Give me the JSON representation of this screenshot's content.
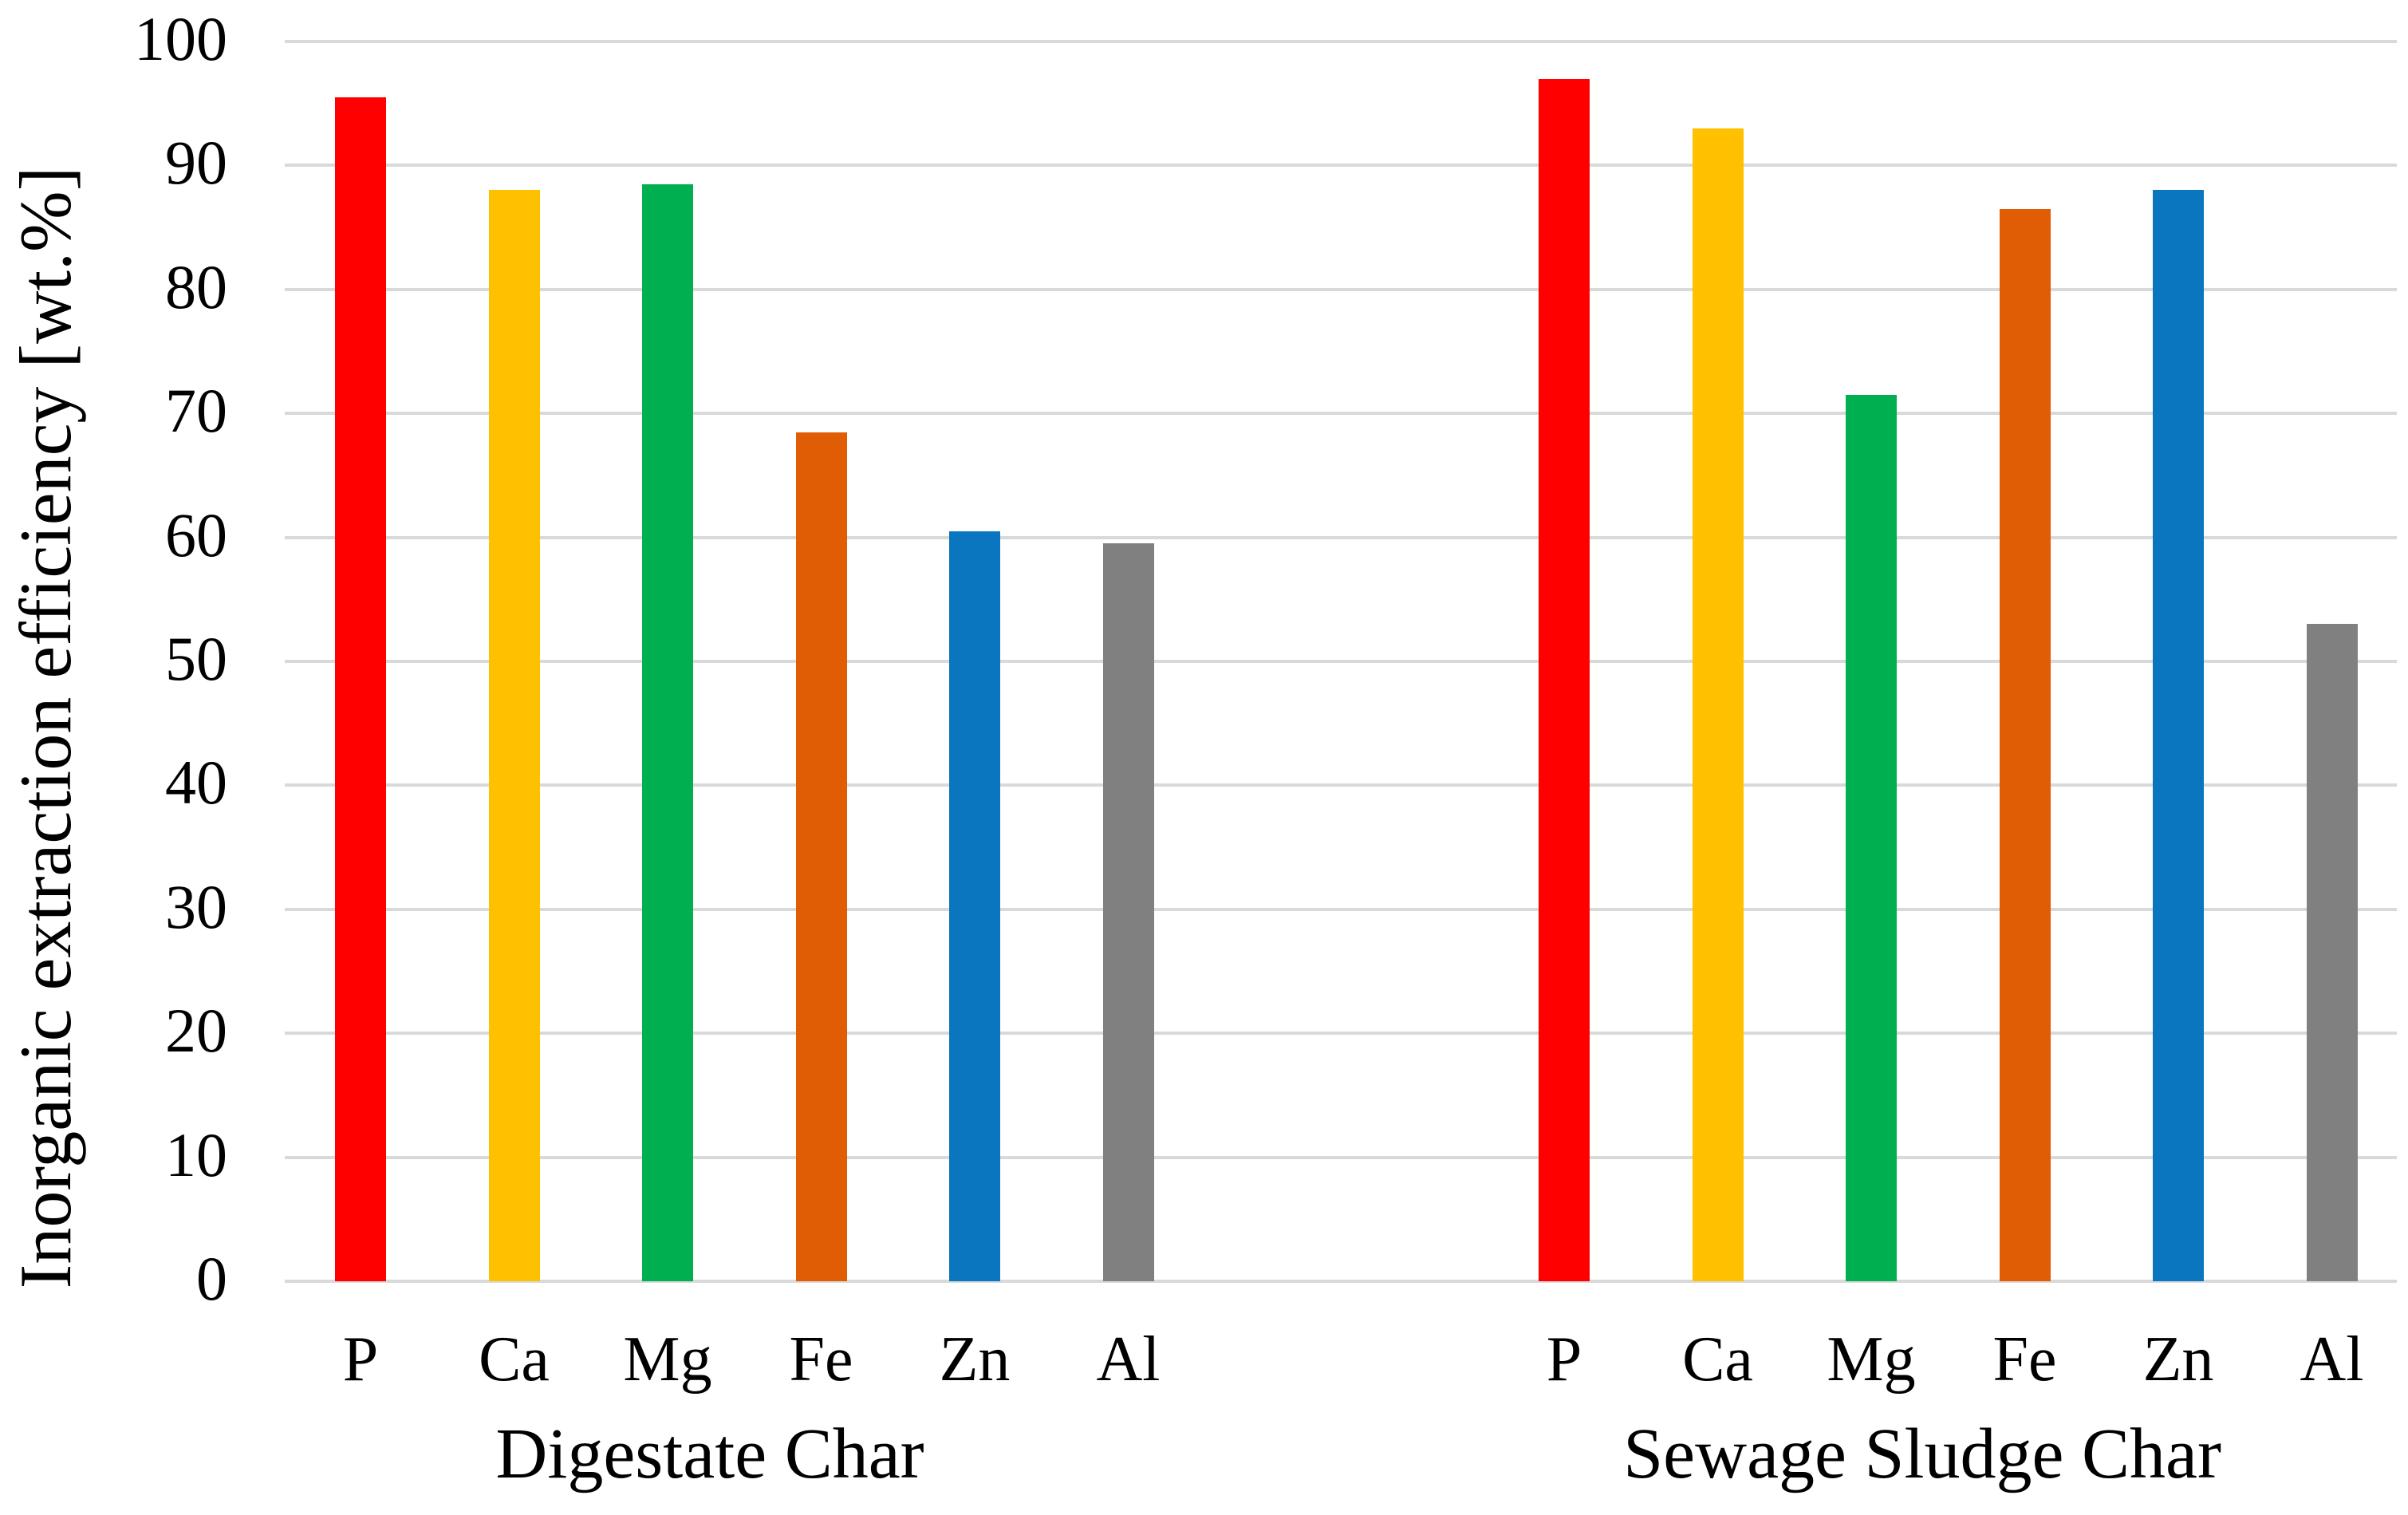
{
  "chart_data": {
    "type": "bar",
    "title": "",
    "xlabel": "",
    "ylabel": "Inorganic extraction efficiency [wt.%]",
    "ylim": [
      0,
      100
    ],
    "ytick_interval": 10,
    "ytick_labels": [
      "0",
      "10",
      "20",
      "30",
      "40",
      "50",
      "60",
      "70",
      "80",
      "90",
      "100"
    ],
    "grid": true,
    "legend": false,
    "categories": [
      "P",
      "Ca",
      "Mg",
      "Fe",
      "Zn",
      "Al"
    ],
    "groups": [
      {
        "label": "Digestate Char",
        "values": [
          95.5,
          88.0,
          88.5,
          68.5,
          60.5,
          59.5
        ]
      },
      {
        "label": "Sewage Sludge Char",
        "values": [
          97.0,
          93.0,
          71.5,
          86.5,
          88.0,
          53.0
        ]
      }
    ],
    "category_colors": [
      "#FF0000",
      "#FFC000",
      "#00B050",
      "#E05C05",
      "#0B76C0",
      "#808080"
    ],
    "gridline_color": "#D9D9D9",
    "axis_text_color": "#000000",
    "background_color": "#FFFFFF"
  }
}
